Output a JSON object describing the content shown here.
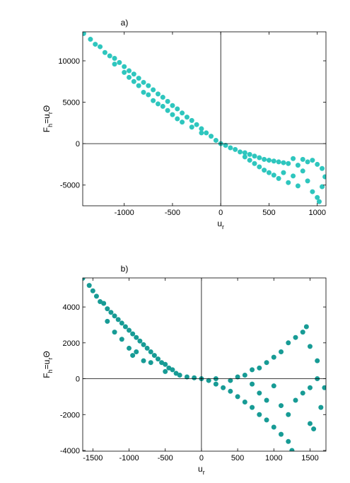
{
  "chart_data": [
    {
      "type": "scatter",
      "title": "a)",
      "xlabel": [
        "u",
        "r"
      ],
      "ylabel": [
        "F",
        "h",
        "=u",
        "r",
        "Θ"
      ],
      "color": "#2ec6be",
      "zero_lines": true,
      "box": true,
      "xlim": [
        -1430,
        1090
      ],
      "ylim": [
        -7500,
        13500
      ],
      "xticks": [
        -1000,
        -500,
        0,
        500,
        1000
      ],
      "yticks": [
        -5000,
        0,
        5000,
        10000
      ],
      "x": [
        -1420,
        -1350,
        -1300,
        -1250,
        -1200,
        -1150,
        -1100,
        -1100,
        -1050,
        -1000,
        -1000,
        -950,
        -950,
        -900,
        -900,
        -850,
        -850,
        -800,
        -800,
        -750,
        -750,
        -700,
        -700,
        -650,
        -650,
        -600,
        -600,
        -550,
        -550,
        -500,
        -500,
        -450,
        -450,
        -400,
        -400,
        -350,
        -300,
        -300,
        -250,
        -200,
        -200,
        -150,
        -100,
        -50,
        0,
        50,
        100,
        150,
        200,
        250,
        250,
        300,
        300,
        350,
        350,
        400,
        400,
        450,
        450,
        500,
        500,
        550,
        550,
        600,
        600,
        650,
        650,
        700,
        700,
        750,
        750,
        800,
        800,
        850,
        850,
        900,
        900,
        950,
        950,
        1000,
        1000,
        1050,
        1050,
        1080,
        1020
      ],
      "values": [
        13300,
        12600,
        12000,
        11700,
        11000,
        10600,
        10300,
        9600,
        9800,
        9300,
        8600,
        8800,
        8000,
        8400,
        7500,
        7900,
        7000,
        7400,
        6200,
        7000,
        5900,
        6500,
        5200,
        6000,
        4800,
        5600,
        4500,
        5100,
        4000,
        4600,
        3500,
        4200,
        3000,
        3700,
        2600,
        3200,
        2800,
        2000,
        2300,
        1800,
        1300,
        1300,
        900,
        400,
        0,
        -200,
        -500,
        -700,
        -1000,
        -1100,
        -1600,
        -1300,
        -2000,
        -1500,
        -2400,
        -1700,
        -2800,
        -1900,
        -3200,
        -2000,
        -3500,
        -2100,
        -3800,
        -2200,
        -4200,
        -2300,
        -3500,
        -2400,
        -4700,
        -1800,
        -3900,
        -2600,
        -5100,
        -1900,
        -3300,
        -2200,
        -4500,
        -2000,
        -5800,
        -2500,
        -6500,
        -3000,
        -5200,
        -4000,
        -7000
      ]
    },
    {
      "type": "scatter",
      "title": "b)",
      "xlabel": [
        "u",
        "r"
      ],
      "ylabel": [
        "F",
        "h",
        "=u",
        "r",
        "Θ"
      ],
      "color": "#179b95",
      "zero_lines": true,
      "box": true,
      "xlim": [
        -1640,
        1720
      ],
      "ylim": [
        -4040,
        5620
      ],
      "xticks": [
        -1500,
        -1000,
        -500,
        0,
        500,
        1000,
        1500
      ],
      "yticks": [
        -4000,
        -2000,
        0,
        2000,
        4000
      ],
      "x": [
        -1640,
        -1550,
        -1500,
        -1450,
        -1400,
        -1350,
        -1300,
        -1300,
        -1250,
        -1200,
        -1200,
        -1150,
        -1100,
        -1100,
        -1050,
        -1000,
        -1000,
        -950,
        -950,
        -900,
        -900,
        -850,
        -800,
        -800,
        -750,
        -700,
        -700,
        -650,
        -600,
        -550,
        -500,
        -500,
        -450,
        -400,
        -350,
        -300,
        -200,
        -100,
        0,
        100,
        200,
        200,
        300,
        400,
        400,
        500,
        500,
        600,
        600,
        700,
        700,
        700,
        800,
        800,
        800,
        900,
        900,
        900,
        1000,
        1000,
        1000,
        1100,
        1100,
        1100,
        1200,
        1200,
        1200,
        1250,
        1300,
        1300,
        1400,
        1400,
        1450,
        1500,
        1500,
        1500,
        1600,
        1650,
        1700,
        1550,
        1600
      ],
      "values": [
        5600,
        5200,
        4900,
        4600,
        4300,
        4200,
        3900,
        3200,
        3700,
        3500,
        2600,
        3300,
        3100,
        2200,
        2900,
        2700,
        1700,
        2500,
        1300,
        2300,
        1500,
        2100,
        1900,
        1000,
        1700,
        1500,
        900,
        1300,
        1100,
        900,
        800,
        400,
        600,
        500,
        300,
        200,
        100,
        50,
        0,
        -100,
        -300,
        0,
        -500,
        -700,
        -100,
        -1000,
        100,
        -1300,
        200,
        -1600,
        -300,
        500,
        -2000,
        600,
        -800,
        -2300,
        900,
        -1200,
        -2700,
        1200,
        -400,
        -3100,
        1500,
        -1500,
        -3500,
        2000,
        -2000,
        -4000,
        2300,
        -1200,
        2600,
        -800,
        2900,
        1800,
        -500,
        -2500,
        0,
        -1600,
        -500,
        -2800,
        1000
      ]
    }
  ]
}
